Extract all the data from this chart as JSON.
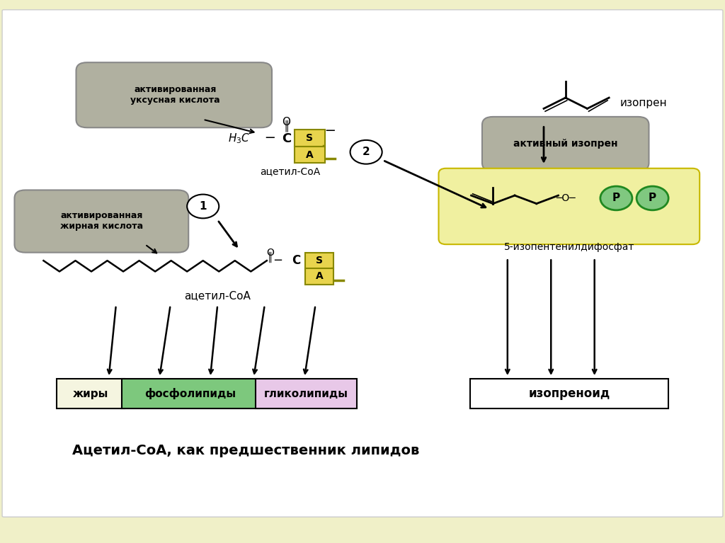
{
  "bg_outer": "#f0f0c8",
  "bg_inner": "#ffffff",
  "title_text": "Ацетил-СоА, как предшественник липидов",
  "label_activated_acetic": "активированная\nуксусная кислота",
  "label_activated_fatty": "активированная\nжирная кислота",
  "label_acetyl_coa_top": "ацетил-СоА",
  "label_acetyl_coa_bottom": "ацетил-СоА",
  "label_izopren": "изопрен",
  "label_active_izopren": "активный изопрен",
  "label_5_izopentyl": "5-изопентенилдифосфат",
  "label_fat": "жиры",
  "label_phospholipids": "фосфолипиды",
  "label_glycolipids": "гликолипиды",
  "label_izoprenoid": "изопреноид",
  "label_circle1": "1",
  "label_circle2": "2",
  "color_yellow_box": "#e8d44d",
  "color_green_box": "#7dc87d",
  "color_pink_box": "#e8c8e8",
  "color_cream_box": "#f5f5e0",
  "color_gray_label": "#b0b0a0",
  "color_yellow_highlight": "#f0f0a0",
  "color_green_circles": "#80c880"
}
